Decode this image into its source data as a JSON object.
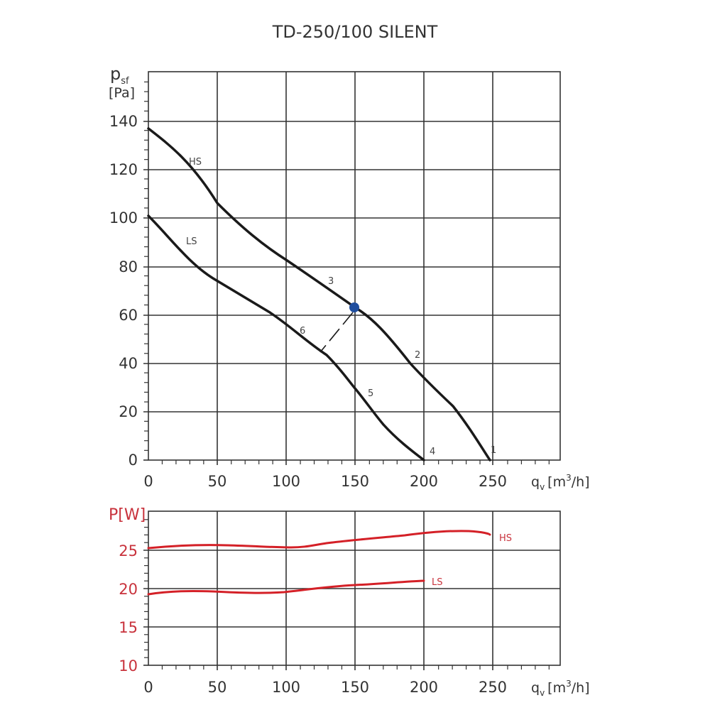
{
  "title": "TD-250/100 SILENT",
  "colors": {
    "pressure_curve": "#1a1a1a",
    "power_curve": "#d42027",
    "operating_point": "#1f4e9e",
    "grid": "#333333",
    "power_axis_label": "#c8323c"
  },
  "chart_data": [
    {
      "type": "line",
      "title": "TD-250/100 SILENT",
      "xlabel": "q_v [m³/h]",
      "ylabel": "p_sf [Pa]",
      "xlim": [
        0,
        298
      ],
      "ylim": [
        0,
        160
      ],
      "x_ticks": [
        0,
        50,
        100,
        150,
        200,
        250
      ],
      "y_ticks": [
        0,
        20,
        40,
        60,
        80,
        100,
        120,
        140
      ],
      "grid": true,
      "series": [
        {
          "name": "HS",
          "x": [
            0,
            25,
            50,
            75,
            100,
            125,
            150,
            175,
            200,
            225,
            247
          ],
          "values": [
            137,
            122,
            106,
            93,
            82,
            71,
            63,
            49,
            35,
            21,
            0
          ]
        },
        {
          "name": "LS",
          "x": [
            0,
            20,
            40,
            50,
            70,
            90,
            110,
            130,
            150,
            170,
            200
          ],
          "values": [
            101,
            87,
            77,
            74,
            67,
            59,
            50,
            43,
            29,
            17,
            0
          ]
        }
      ],
      "annotations": [
        {
          "text": "HS",
          "x": 35,
          "y": 123
        },
        {
          "text": "LS",
          "x": 32,
          "y": 91
        },
        {
          "text": "1",
          "x": 253,
          "y": 4
        },
        {
          "text": "2",
          "x": 195,
          "y": 43
        },
        {
          "text": "3",
          "x": 133,
          "y": 73
        },
        {
          "text": "4",
          "x": 210,
          "y": 4
        },
        {
          "text": "5",
          "x": 161,
          "y": 27
        },
        {
          "text": "6",
          "x": 113,
          "y": 53
        }
      ],
      "operating_point": {
        "x": 149,
        "y": 63
      },
      "dashed_line": {
        "from": [
          149,
          62
        ],
        "to": [
          124,
          45
        ]
      }
    },
    {
      "type": "line",
      "xlabel": "q_v [m³/h]",
      "ylabel": "P[W]",
      "xlim": [
        0,
        298
      ],
      "ylim": [
        10,
        30
      ],
      "x_ticks": [
        0,
        50,
        100,
        150,
        200,
        250
      ],
      "y_ticks": [
        10,
        15,
        20,
        25
      ],
      "grid": true,
      "series": [
        {
          "name": "HS",
          "x": [
            0,
            25,
            50,
            75,
            100,
            115,
            150,
            175,
            200,
            225,
            248
          ],
          "values": [
            25.2,
            25.5,
            25.6,
            25.5,
            25.3,
            25.4,
            26.0,
            26.5,
            27.0,
            27.3,
            27.1
          ]
        },
        {
          "name": "LS",
          "x": [
            0,
            25,
            50,
            75,
            100,
            125,
            150,
            175,
            200
          ],
          "values": [
            19.2,
            19.6,
            19.5,
            19.3,
            19.5,
            19.9,
            20.3,
            20.6,
            20.9
          ]
        }
      ]
    }
  ],
  "upper": {
    "ylabel_main": "p",
    "ylabel_sub": "sf",
    "ylabel_unit": "[Pa]",
    "x_ticks": [
      "0",
      "50",
      "100",
      "150",
      "200",
      "250"
    ],
    "y_ticks": [
      "0",
      "20",
      "40",
      "60",
      "80",
      "100",
      "120",
      "140"
    ],
    "xlabel_main": "q",
    "xlabel_sub": "v",
    "xlabel_unit_pre": "[m",
    "xlabel_unit_sup": "3",
    "xlabel_unit_post": "/h]",
    "labels": {
      "hs": "HS",
      "ls": "LS",
      "p1": "1",
      "p2": "2",
      "p3": "3",
      "p4": "4",
      "p5": "5",
      "p6": "6"
    }
  },
  "lower": {
    "ylabel": "P[W]",
    "x_ticks": [
      "0",
      "50",
      "100",
      "150",
      "200",
      "250"
    ],
    "y_ticks": [
      "10",
      "15",
      "20",
      "25"
    ],
    "xlabel_main": "q",
    "xlabel_sub": "v",
    "xlabel_unit_pre": "[m",
    "xlabel_unit_sup": "3",
    "xlabel_unit_post": "/h]",
    "labels": {
      "hs": "HS",
      "ls": "LS"
    }
  }
}
